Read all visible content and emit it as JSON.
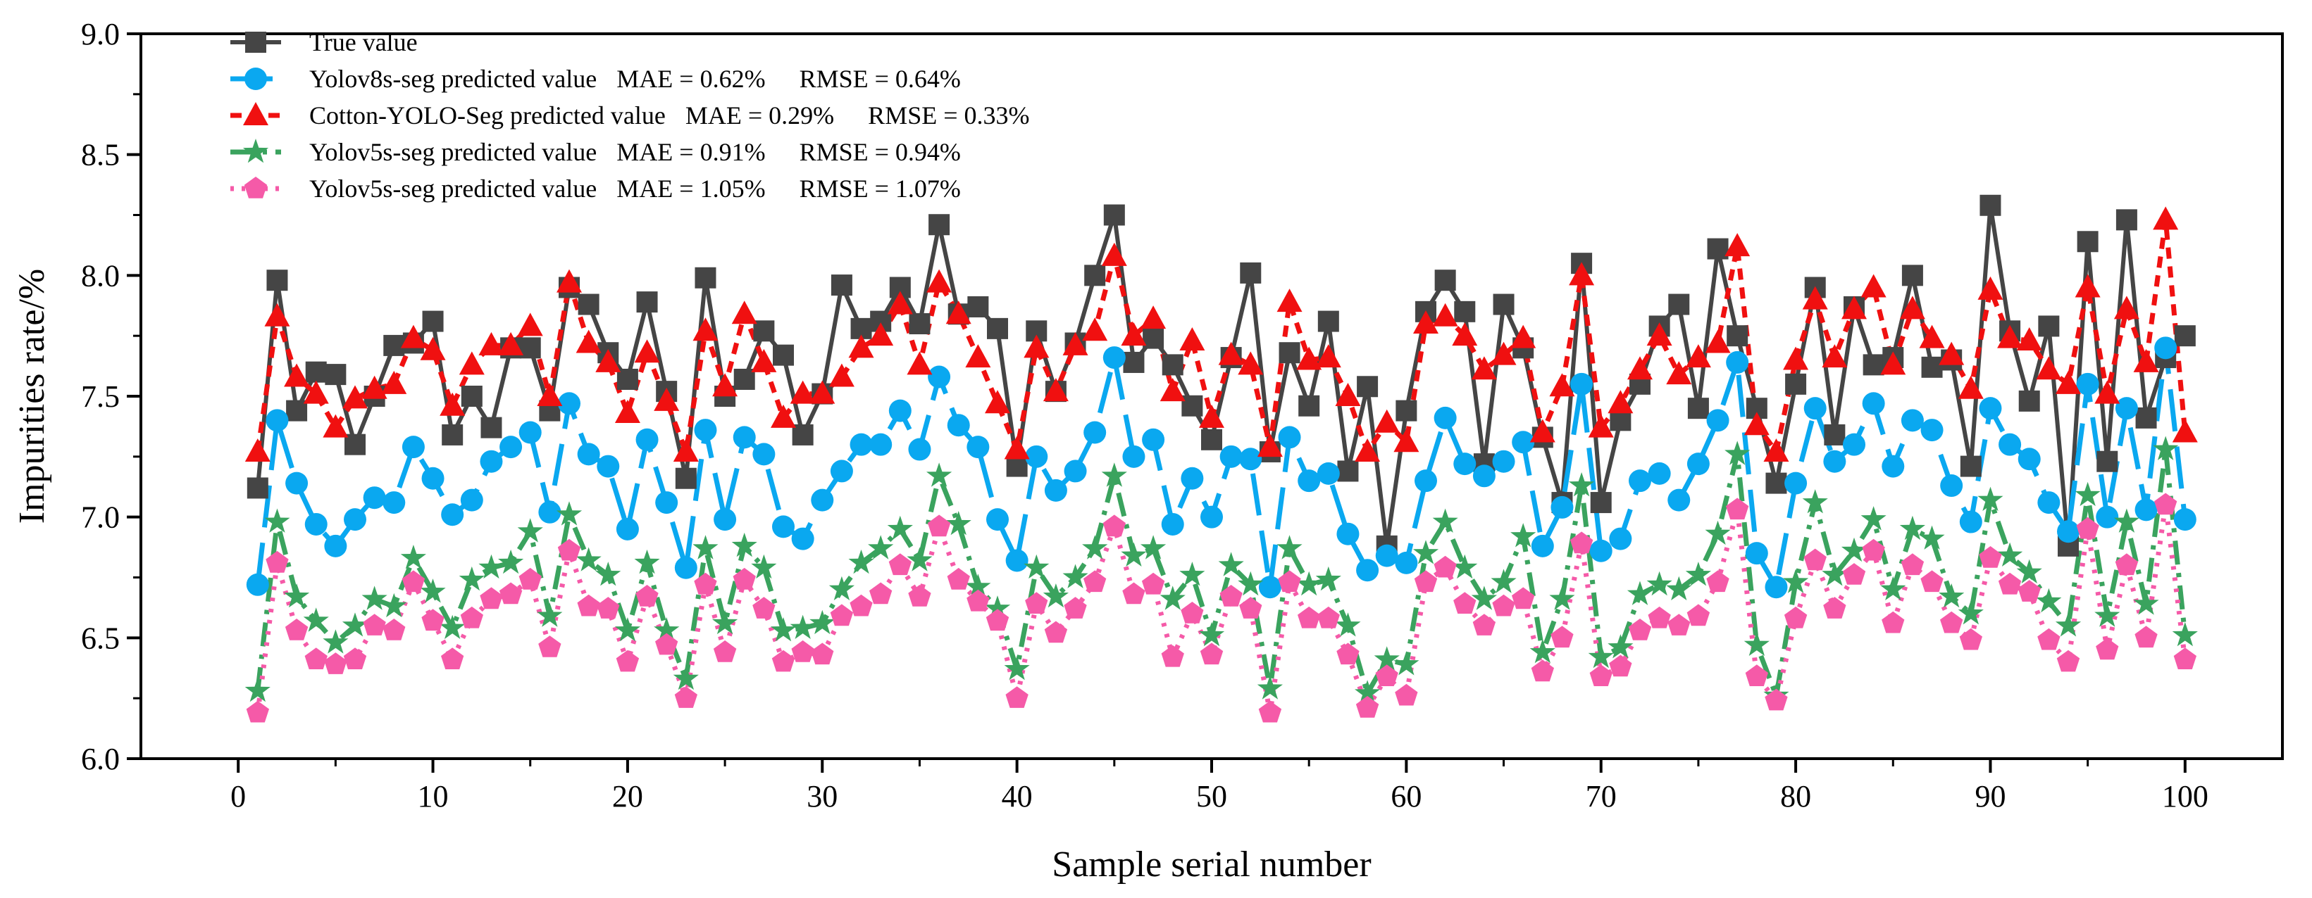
{
  "chart_data": {
    "type": "line",
    "title": "",
    "xlabel": "Sample serial number",
    "ylabel": "Impurities rate/%",
    "xlim": [
      -5,
      105
    ],
    "ylim": [
      6.0,
      9.0
    ],
    "xticks": [
      0,
      10,
      20,
      30,
      40,
      50,
      60,
      70,
      80,
      90,
      100
    ],
    "xticks_minor_step": 5,
    "yticks": [
      6.0,
      6.5,
      7.0,
      7.5,
      8.0,
      8.5,
      9.0
    ],
    "grid": false,
    "legend_position": "top-left",
    "x": [
      1,
      2,
      3,
      4,
      5,
      6,
      7,
      8,
      9,
      10,
      11,
      12,
      13,
      14,
      15,
      16,
      17,
      18,
      19,
      20,
      21,
      22,
      23,
      24,
      25,
      26,
      27,
      28,
      29,
      30,
      31,
      32,
      33,
      34,
      35,
      36,
      37,
      38,
      39,
      40,
      41,
      42,
      43,
      44,
      45,
      46,
      47,
      48,
      49,
      50,
      51,
      52,
      53,
      54,
      55,
      56,
      57,
      58,
      59,
      60,
      61,
      62,
      63,
      64,
      65,
      66,
      67,
      68,
      69,
      70,
      71,
      72,
      73,
      74,
      75,
      76,
      77,
      78,
      79,
      80,
      81,
      82,
      83,
      84,
      85,
      86,
      87,
      88,
      89,
      90,
      91,
      92,
      93,
      94,
      95,
      96,
      97,
      98,
      99,
      100
    ],
    "series": [
      {
        "name": "True value",
        "legend_label": "True value",
        "color": "#454545",
        "marker": "square",
        "dash": "solid",
        "values": [
          7.12,
          7.98,
          7.44,
          7.6,
          7.59,
          7.3,
          7.5,
          7.71,
          7.72,
          7.81,
          7.34,
          7.5,
          7.37,
          7.7,
          7.7,
          7.44,
          7.95,
          7.88,
          7.68,
          7.57,
          7.89,
          7.52,
          7.16,
          7.99,
          7.5,
          7.57,
          7.77,
          7.67,
          7.34,
          7.51,
          7.96,
          7.78,
          7.81,
          7.95,
          7.8,
          8.21,
          7.84,
          7.87,
          7.78,
          7.21,
          7.77,
          7.52,
          7.72,
          8.0,
          8.25,
          7.64,
          7.74,
          7.63,
          7.46,
          7.32,
          7.66,
          8.01,
          7.27,
          7.68,
          7.46,
          7.81,
          7.19,
          7.54,
          6.88,
          7.44,
          7.85,
          7.98,
          7.85,
          7.22,
          7.88,
          7.7,
          7.33,
          7.06,
          8.05,
          7.06,
          7.4,
          7.55,
          7.79,
          7.88,
          7.45,
          8.11,
          7.75,
          7.45,
          7.14,
          7.55,
          7.95,
          7.34,
          7.87,
          7.63,
          7.66,
          8.0,
          7.62,
          7.65,
          7.21,
          8.29,
          7.77,
          7.48,
          7.79,
          6.88,
          8.14,
          7.23,
          8.23,
          7.41,
          7.66,
          7.75
        ]
      },
      {
        "name": "Yolov8s-seg predicted value",
        "legend_label": "Yolov8s-seg predicted value",
        "mae": "MAE = 0.62%",
        "rmse": "RMSE = 0.64%",
        "color": "#0aa8f0",
        "marker": "circle",
        "dash": "longdash",
        "values": [
          6.72,
          7.4,
          7.14,
          6.97,
          6.88,
          6.99,
          7.08,
          7.06,
          7.29,
          7.16,
          7.01,
          7.07,
          7.23,
          7.29,
          7.35,
          7.02,
          7.47,
          7.26,
          7.21,
          6.95,
          7.32,
          7.06,
          6.79,
          7.36,
          6.99,
          7.33,
          7.26,
          6.96,
          6.91,
          7.07,
          7.19,
          7.3,
          7.3,
          7.44,
          7.28,
          7.58,
          7.38,
          7.29,
          6.99,
          6.82,
          7.25,
          7.11,
          7.19,
          7.35,
          7.66,
          7.25,
          7.32,
          6.97,
          7.16,
          7.0,
          7.25,
          7.24,
          6.71,
          7.33,
          7.15,
          7.18,
          6.93,
          6.78,
          6.84,
          6.81,
          7.15,
          7.41,
          7.22,
          7.17,
          7.23,
          7.31,
          6.88,
          7.04,
          7.55,
          6.86,
          6.91,
          7.15,
          7.18,
          7.07,
          7.22,
          7.4,
          7.64,
          6.85,
          6.71,
          7.14,
          7.45,
          7.23,
          7.3,
          7.47,
          7.21,
          7.4,
          7.36,
          7.13,
          6.98,
          7.45,
          7.3,
          7.24,
          7.06,
          6.94,
          7.55,
          7.0,
          7.45,
          7.03,
          7.7,
          6.99
        ]
      },
      {
        "name": "Cotton-YOLO-Seg predicted value",
        "legend_label": "Cotton-YOLO-Seg predicted value",
        "mae": "MAE = 0.29%",
        "rmse": "RMSE = 0.33%",
        "color": "#f01010",
        "marker": "triangle",
        "dash": "shortdash",
        "values": [
          7.27,
          7.83,
          7.58,
          7.51,
          7.37,
          7.49,
          7.53,
          7.55,
          7.74,
          7.69,
          7.46,
          7.63,
          7.71,
          7.71,
          7.79,
          7.5,
          7.97,
          7.72,
          7.64,
          7.43,
          7.68,
          7.48,
          7.27,
          7.77,
          7.54,
          7.84,
          7.64,
          7.41,
          7.51,
          7.51,
          7.58,
          7.7,
          7.75,
          7.88,
          7.63,
          7.97,
          7.84,
          7.66,
          7.47,
          7.28,
          7.7,
          7.52,
          7.71,
          7.77,
          8.08,
          7.75,
          7.82,
          7.52,
          7.73,
          7.41,
          7.67,
          7.63,
          7.29,
          7.89,
          7.65,
          7.66,
          7.5,
          7.27,
          7.39,
          7.31,
          7.8,
          7.83,
          7.75,
          7.61,
          7.67,
          7.74,
          7.35,
          7.54,
          8.0,
          7.37,
          7.47,
          7.61,
          7.75,
          7.59,
          7.66,
          7.72,
          8.12,
          7.38,
          7.27,
          7.65,
          7.9,
          7.66,
          7.86,
          7.95,
          7.63,
          7.86,
          7.74,
          7.67,
          7.53,
          7.94,
          7.74,
          7.73,
          7.61,
          7.55,
          7.95,
          7.51,
          7.86,
          7.64,
          8.23,
          7.35
        ]
      },
      {
        "name": "Yolov5s-seg predicted value",
        "legend_label": "Yolov5s-seg predicted value",
        "mae": "MAE = 0.91%",
        "rmse": "RMSE = 0.94%",
        "color": "#3aa35e",
        "marker": "star",
        "dash": "dashdot",
        "values": [
          6.28,
          6.98,
          6.67,
          6.57,
          6.48,
          6.55,
          6.66,
          6.63,
          6.83,
          6.69,
          6.54,
          6.74,
          6.79,
          6.81,
          6.94,
          6.59,
          7.01,
          6.82,
          6.76,
          6.53,
          6.81,
          6.53,
          6.33,
          6.87,
          6.56,
          6.88,
          6.79,
          6.53,
          6.54,
          6.56,
          6.7,
          6.81,
          6.87,
          6.95,
          6.82,
          7.17,
          6.97,
          6.71,
          6.62,
          6.37,
          6.79,
          6.67,
          6.75,
          6.87,
          7.17,
          6.84,
          6.87,
          6.66,
          6.76,
          6.51,
          6.8,
          6.72,
          6.29,
          6.87,
          6.72,
          6.74,
          6.55,
          6.27,
          6.41,
          6.39,
          6.85,
          6.98,
          6.79,
          6.66,
          6.73,
          6.92,
          6.44,
          6.66,
          7.13,
          6.42,
          6.46,
          6.68,
          6.72,
          6.7,
          6.76,
          6.93,
          7.26,
          6.47,
          6.26,
          6.73,
          7.06,
          6.76,
          6.86,
          6.99,
          6.7,
          6.95,
          6.91,
          6.67,
          6.6,
          7.07,
          6.84,
          6.77,
          6.65,
          6.55,
          7.09,
          6.59,
          6.98,
          6.64,
          7.28,
          6.51
        ]
      },
      {
        "name": "Yolov5s-seg predicted value",
        "legend_label": "Yolov5s-seg predicted value",
        "mae": "MAE = 1.05%",
        "rmse": "RMSE = 1.07%",
        "color": "#f55aa8",
        "marker": "pentagon",
        "dash": "dot",
        "values": [
          6.19,
          6.81,
          6.53,
          6.41,
          6.39,
          6.41,
          6.55,
          6.53,
          6.73,
          6.57,
          6.41,
          6.58,
          6.66,
          6.68,
          6.74,
          6.46,
          6.86,
          6.63,
          6.62,
          6.4,
          6.67,
          6.47,
          6.25,
          6.72,
          6.44,
          6.74,
          6.62,
          6.4,
          6.44,
          6.43,
          6.59,
          6.63,
          6.68,
          6.8,
          6.67,
          6.96,
          6.74,
          6.65,
          6.57,
          6.25,
          6.64,
          6.52,
          6.62,
          6.73,
          6.96,
          6.68,
          6.72,
          6.42,
          6.6,
          6.43,
          6.67,
          6.62,
          6.19,
          6.73,
          6.58,
          6.58,
          6.43,
          6.21,
          6.34,
          6.26,
          6.73,
          6.79,
          6.64,
          6.55,
          6.63,
          6.66,
          6.36,
          6.5,
          6.89,
          6.34,
          6.38,
          6.53,
          6.58,
          6.55,
          6.59,
          6.73,
          7.03,
          6.34,
          6.24,
          6.58,
          6.82,
          6.62,
          6.76,
          6.86,
          6.56,
          6.8,
          6.73,
          6.56,
          6.49,
          6.83,
          6.72,
          6.69,
          6.49,
          6.4,
          6.95,
          6.45,
          6.8,
          6.5,
          7.05,
          6.41
        ]
      }
    ]
  }
}
